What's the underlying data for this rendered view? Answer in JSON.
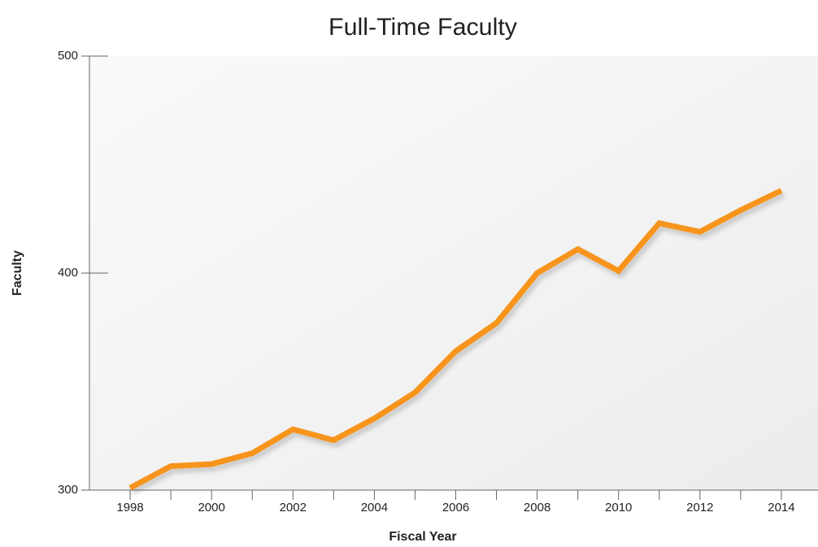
{
  "chart_data": {
    "type": "line",
    "title": "Full-Time Faculty",
    "x_label": "Fiscal Year",
    "y_label": "Faculty",
    "x": [
      1998,
      1999,
      2000,
      2001,
      2002,
      2003,
      2004,
      2005,
      2006,
      2007,
      2008,
      2009,
      2010,
      2011,
      2012,
      2013,
      2014
    ],
    "series": [
      {
        "name": "Full-Time Faculty",
        "color": "#f7941d",
        "values": [
          301,
          311,
          312,
          317,
          328,
          323,
          333,
          345,
          364,
          377,
          400,
          411,
          401,
          423,
          419,
          429,
          438
        ]
      }
    ],
    "xlim": [
      1997,
      2015
    ],
    "xticks": [
      1998,
      2000,
      2002,
      2004,
      2006,
      2008,
      2010,
      2012,
      2014
    ],
    "xminorticks": [
      1999,
      2001,
      2003,
      2005,
      2007,
      2009,
      2011,
      2013
    ],
    "ylim": [
      300,
      500
    ],
    "yticks": [
      300,
      400,
      500
    ],
    "grid": false,
    "legend": false
  }
}
